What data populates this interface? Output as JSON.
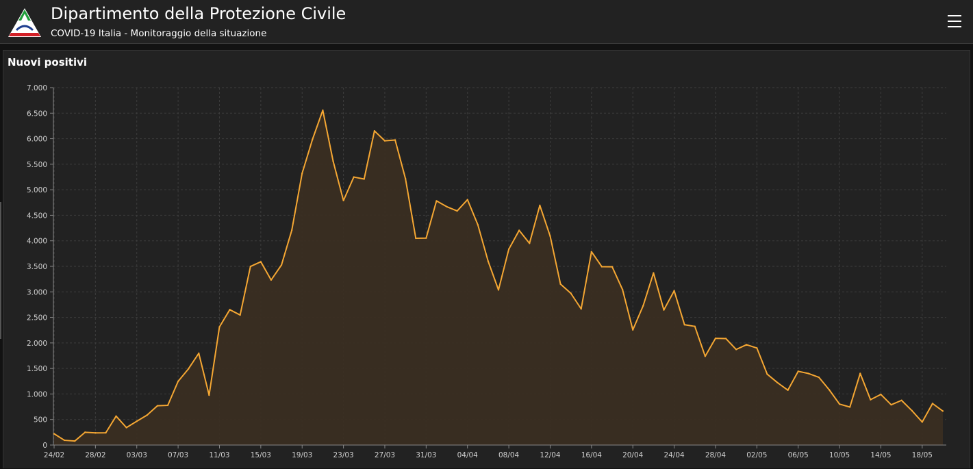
{
  "header": {
    "title": "Dipartimento della Protezione Civile",
    "subtitle": "COVID-19 Italia - Monitoraggio della situazione",
    "logo_icon": "protezione-civile-logo-icon",
    "menu_icon": "hamburger-menu-icon"
  },
  "panel": {
    "title": "Nuovi positivi"
  },
  "colors": {
    "background": "#121212",
    "panel": "#222222",
    "line": "#f5a733",
    "area_fill": "#3a2e22",
    "grid": "#3d3d3d",
    "tick_text": "#d0d0d0"
  },
  "chart_data": {
    "type": "area",
    "title": "Nuovi positivi",
    "xlabel": "",
    "ylabel": "",
    "ylim": [
      0,
      7000
    ],
    "grid": true,
    "y_ticks": [
      0,
      500,
      1000,
      1500,
      2000,
      2500,
      3000,
      3500,
      4000,
      4500,
      5000,
      5500,
      6000,
      6500,
      7000
    ],
    "y_tick_labels": [
      "0",
      "500",
      "1.000",
      "1.500",
      "2.000",
      "2.500",
      "3.000",
      "3.500",
      "4.000",
      "4.500",
      "5.000",
      "5.500",
      "6.000",
      "6.500",
      "7.000"
    ],
    "x_tick_labels": [
      "24/02",
      "28/02",
      "03/03",
      "07/03",
      "11/03",
      "15/03",
      "19/03",
      "23/03",
      "27/03",
      "31/03",
      "04/04",
      "08/04",
      "12/04",
      "16/04",
      "20/04",
      "24/04",
      "28/04",
      "02/05",
      "06/05",
      "10/05",
      "14/05",
      "18/05"
    ],
    "x_tick_every_days": 4,
    "x_start": "24/02",
    "series": [
      {
        "values": [
          221,
          93,
          78,
          250,
          238,
          240,
          566,
          342,
          466,
          587,
          769,
          778,
          1247,
          1492,
          1797,
          977,
          2313,
          2651,
          2547,
          3497,
          3590,
          3233,
          3526,
          4207,
          5322,
          5986,
          6557,
          5560,
          4789,
          5249,
          5210,
          6153,
          5959,
          5974,
          5217,
          4050,
          4053,
          4782,
          4668,
          4585,
          4805,
          4316,
          3599,
          3039,
          3836,
          4204,
          3951,
          4694,
          4092,
          3153,
          2972,
          2667,
          3786,
          3493,
          3491,
          3047,
          2256,
          2729,
          3370,
          2646,
          3021,
          2357,
          2324,
          1739,
          2091,
          2086,
          1872,
          1965,
          1900,
          1389,
          1221,
          1075,
          1444,
          1401,
          1327,
          1083,
          802,
          744,
          1402,
          888,
          992,
          789,
          875,
          675,
          451,
          813,
          665
        ]
      }
    ]
  }
}
